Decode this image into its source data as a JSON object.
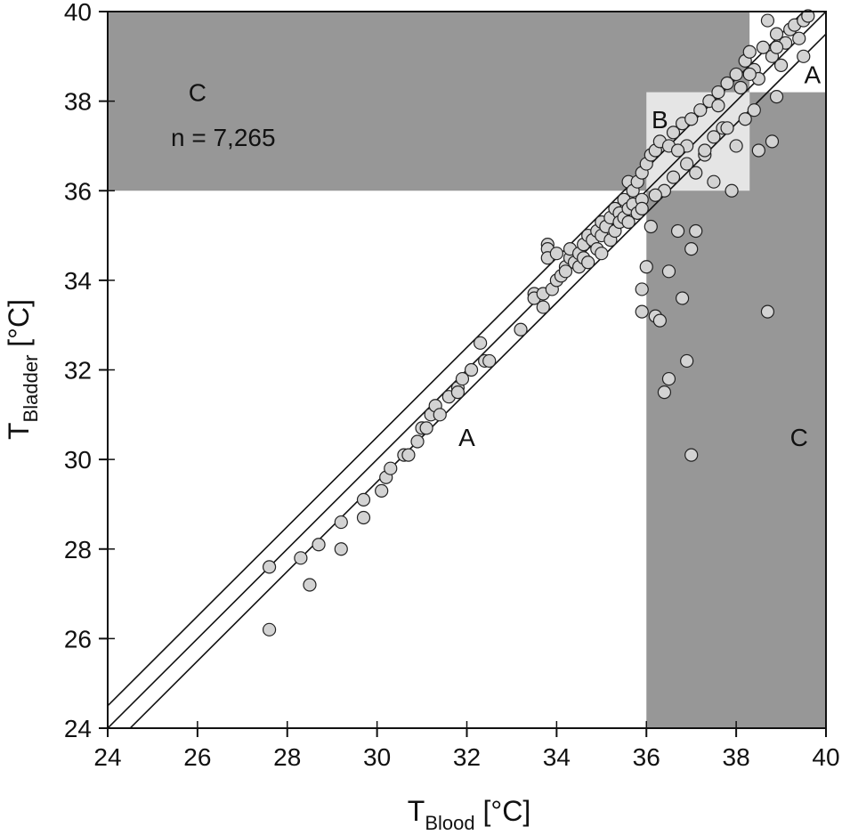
{
  "chart_data": {
    "type": "scatter",
    "xlabel": {
      "main": "T",
      "sub": "Blood",
      "unit": " [°C]"
    },
    "ylabel": {
      "main": "T",
      "sub": "Bladder",
      "unit": " [°C]"
    },
    "xlim": [
      24,
      40
    ],
    "ylim": [
      24,
      40
    ],
    "xticks": [
      "24",
      "26",
      "28",
      "30",
      "32",
      "34",
      "36",
      "38",
      "40"
    ],
    "yticks": [
      "24",
      "26",
      "28",
      "30",
      "32",
      "34",
      "36",
      "38",
      "40"
    ],
    "grid": false,
    "annotation": "n = 7,265",
    "zones": [
      {
        "label": "C",
        "kind": "dark",
        "x": [
          24,
          38.3
        ],
        "y": [
          36,
          40
        ],
        "label_at": [
          26,
          38.2
        ]
      },
      {
        "label": "C",
        "kind": "dark",
        "x": [
          36,
          40
        ],
        "y": [
          24,
          38.2
        ],
        "label_at": [
          39.4,
          30.5
        ]
      },
      {
        "label": "B",
        "kind": "light",
        "x": [
          36,
          38.3
        ],
        "y": [
          36,
          38.2
        ],
        "label_at": [
          36.3,
          37.6
        ]
      },
      {
        "label": "A",
        "kind": "white",
        "x": [
          38.3,
          40
        ],
        "y": [
          38.2,
          40
        ],
        "label_at": [
          39.7,
          38.6
        ]
      },
      {
        "label": "A",
        "kind": "white",
        "label_at": [
          32,
          30.5
        ]
      }
    ],
    "reference_lines": [
      {
        "name": "identity+0.5",
        "offset": 0.5
      },
      {
        "name": "identity",
        "offset": 0
      },
      {
        "name": "identity-0.5",
        "offset": -0.5
      }
    ],
    "colors": {
      "dark_zone": "#979797",
      "light_zone": "#e5e5e5",
      "point_fill": "#d3d3d3",
      "point_stroke": "#222222",
      "line": "#111111"
    },
    "points": [
      [
        27.6,
        27.6
      ],
      [
        27.6,
        26.2
      ],
      [
        28.3,
        27.8
      ],
      [
        28.5,
        27.2
      ],
      [
        28.7,
        28.1
      ],
      [
        29.2,
        28.6
      ],
      [
        29.2,
        28.0
      ],
      [
        29.7,
        29.1
      ],
      [
        29.7,
        28.7
      ],
      [
        30.1,
        29.3
      ],
      [
        30.2,
        29.6
      ],
      [
        30.3,
        29.8
      ],
      [
        30.6,
        30.1
      ],
      [
        30.7,
        30.1
      ],
      [
        30.9,
        30.4
      ],
      [
        31.0,
        30.7
      ],
      [
        31.1,
        30.7
      ],
      [
        31.2,
        31.0
      ],
      [
        31.3,
        31.2
      ],
      [
        31.4,
        31.0
      ],
      [
        31.6,
        31.4
      ],
      [
        31.8,
        31.6
      ],
      [
        31.8,
        31.5
      ],
      [
        31.9,
        31.8
      ],
      [
        32.1,
        32.0
      ],
      [
        32.3,
        32.6
      ],
      [
        32.4,
        32.2
      ],
      [
        32.5,
        32.2
      ],
      [
        33.2,
        32.9
      ],
      [
        33.5,
        33.7
      ],
      [
        33.5,
        33.6
      ],
      [
        33.7,
        33.4
      ],
      [
        33.7,
        33.7
      ],
      [
        33.8,
        34.8
      ],
      [
        33.8,
        34.7
      ],
      [
        33.8,
        34.5
      ],
      [
        33.9,
        33.8
      ],
      [
        34.0,
        34.0
      ],
      [
        34.0,
        34.6
      ],
      [
        34.1,
        34.1
      ],
      [
        34.2,
        34.3
      ],
      [
        34.2,
        34.2
      ],
      [
        34.3,
        34.5
      ],
      [
        34.3,
        34.7
      ],
      [
        34.4,
        34.4
      ],
      [
        34.5,
        34.3
      ],
      [
        34.5,
        34.6
      ],
      [
        34.6,
        34.5
      ],
      [
        34.6,
        34.8
      ],
      [
        34.7,
        35.0
      ],
      [
        34.7,
        34.4
      ],
      [
        34.8,
        34.9
      ],
      [
        34.9,
        35.1
      ],
      [
        34.9,
        34.7
      ],
      [
        35.0,
        35.3
      ],
      [
        35.0,
        34.6
      ],
      [
        35.0,
        35.0
      ],
      [
        35.1,
        35.2
      ],
      [
        35.2,
        35.4
      ],
      [
        35.2,
        34.9
      ],
      [
        35.3,
        35.6
      ],
      [
        35.3,
        35.1
      ],
      [
        35.4,
        35.5
      ],
      [
        35.4,
        35.3
      ],
      [
        35.5,
        35.8
      ],
      [
        35.5,
        35.4
      ],
      [
        35.6,
        36.2
      ],
      [
        35.6,
        35.6
      ],
      [
        35.6,
        35.3
      ],
      [
        35.7,
        35.7
      ],
      [
        35.7,
        36.0
      ],
      [
        35.8,
        36.2
      ],
      [
        35.8,
        35.5
      ],
      [
        35.9,
        36.4
      ],
      [
        35.9,
        35.8
      ],
      [
        35.9,
        33.8
      ],
      [
        35.9,
        33.3
      ],
      [
        36.0,
        36.6
      ],
      [
        36.0,
        34.3
      ],
      [
        36.1,
        36.8
      ],
      [
        36.1,
        35.2
      ],
      [
        36.2,
        36.9
      ],
      [
        36.2,
        33.2
      ],
      [
        36.3,
        37.1
      ],
      [
        36.3,
        33.1
      ],
      [
        36.4,
        36.0
      ],
      [
        36.4,
        31.5
      ],
      [
        36.5,
        37.0
      ],
      [
        36.5,
        34.2
      ],
      [
        36.5,
        31.8
      ],
      [
        36.6,
        37.3
      ],
      [
        36.7,
        35.1
      ],
      [
        36.8,
        37.5
      ],
      [
        36.8,
        33.6
      ],
      [
        36.9,
        32.2
      ],
      [
        36.9,
        37.0
      ],
      [
        37.0,
        37.6
      ],
      [
        37.0,
        30.1
      ],
      [
        37.0,
        34.7
      ],
      [
        37.1,
        36.4
      ],
      [
        37.1,
        35.1
      ],
      [
        37.2,
        37.8
      ],
      [
        37.3,
        36.8
      ],
      [
        37.4,
        38.0
      ],
      [
        37.5,
        37.2
      ],
      [
        37.5,
        36.2
      ],
      [
        37.6,
        38.2
      ],
      [
        37.7,
        37.4
      ],
      [
        37.8,
        38.4
      ],
      [
        37.9,
        36.0
      ],
      [
        38.0,
        38.6
      ],
      [
        38.0,
        37.0
      ],
      [
        38.1,
        38.3
      ],
      [
        38.2,
        38.9
      ],
      [
        38.2,
        37.6
      ],
      [
        38.3,
        39.1
      ],
      [
        38.4,
        38.7
      ],
      [
        38.5,
        36.9
      ],
      [
        38.5,
        38.5
      ],
      [
        38.6,
        39.2
      ],
      [
        38.7,
        39.8
      ],
      [
        38.7,
        33.3
      ],
      [
        38.8,
        37.1
      ],
      [
        38.8,
        39.0
      ],
      [
        38.9,
        39.5
      ],
      [
        39.0,
        38.8
      ],
      [
        39.1,
        39.3
      ],
      [
        39.2,
        39.6
      ],
      [
        39.3,
        39.7
      ],
      [
        39.4,
        39.4
      ],
      [
        39.5,
        39.8
      ],
      [
        39.6,
        39.9
      ],
      [
        39.5,
        39.0
      ],
      [
        38.9,
        38.1
      ],
      [
        38.4,
        37.8
      ],
      [
        37.8,
        37.4
      ],
      [
        37.3,
        36.9
      ],
      [
        36.9,
        36.6
      ],
      [
        36.6,
        36.3
      ],
      [
        36.2,
        35.9
      ],
      [
        35.9,
        35.6
      ],
      [
        37.6,
        37.9
      ],
      [
        38.3,
        38.6
      ],
      [
        38.9,
        39.2
      ],
      [
        36.7,
        36.9
      ]
    ]
  }
}
